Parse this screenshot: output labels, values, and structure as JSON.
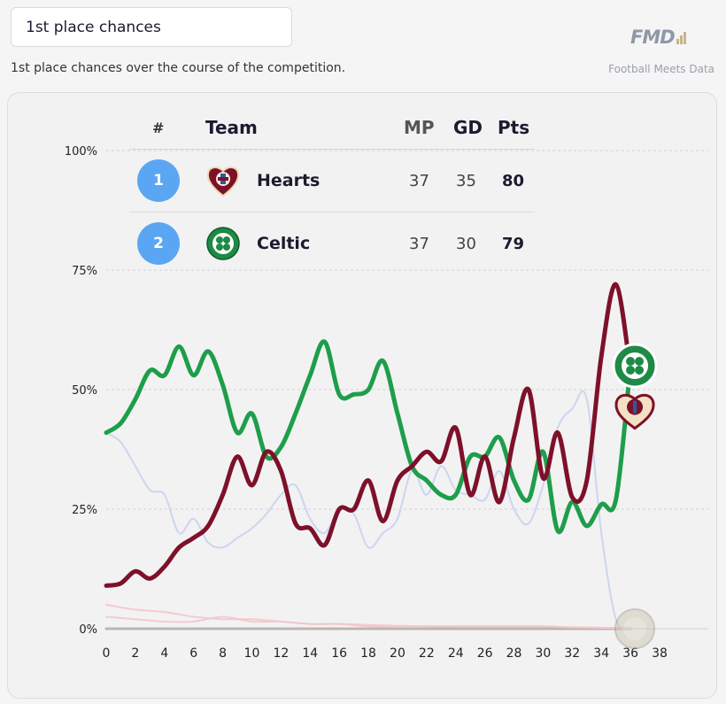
{
  "header": {
    "title": "1st place chances",
    "subtitle": "1st place chances over the course of the competition.",
    "brand": "FMD",
    "tagline": "Football Meets Data"
  },
  "standings": {
    "columns": {
      "rank": "#",
      "team": "Team",
      "mp": "MP",
      "gd": "GD",
      "pts": "Pts"
    },
    "rows": [
      {
        "rank": "1",
        "team": "Hearts",
        "mp": "37",
        "gd": "35",
        "pts": "80",
        "color": "#7d1129"
      },
      {
        "rank": "2",
        "team": "Celtic",
        "mp": "37",
        "gd": "30",
        "pts": "79",
        "color": "#1e9e4a"
      }
    ]
  },
  "chart_data": {
    "type": "line",
    "xlim": [
      0,
      38
    ],
    "ylim": [
      0,
      100
    ],
    "x_ticks": [
      "0",
      "2",
      "4",
      "6",
      "8",
      "10",
      "12",
      "14",
      "16",
      "18",
      "20",
      "22",
      "24",
      "26",
      "28",
      "30",
      "32",
      "34",
      "36",
      "38"
    ],
    "y_ticks": [
      "0%",
      "25%",
      "50%",
      "75%",
      "100%"
    ],
    "grid": true,
    "series": [
      {
        "name": "Hearts",
        "color": "#7d1129",
        "x": [
          0,
          1,
          2,
          3,
          4,
          5,
          6,
          7,
          8,
          9,
          10,
          11,
          12,
          13,
          14,
          15,
          16,
          17,
          18,
          19,
          20,
          21,
          22,
          23,
          24,
          25,
          26,
          27,
          28,
          29,
          30,
          31,
          32,
          33,
          34,
          35,
          36
        ],
        "values": [
          9,
          9.5,
          12,
          10.5,
          13,
          17,
          19,
          21.5,
          28,
          36,
          30,
          37,
          33,
          22,
          21,
          17.5,
          25,
          25,
          31,
          22.5,
          31,
          34,
          37,
          35,
          42,
          28,
          36,
          26.5,
          40,
          50,
          31.5,
          41,
          27.5,
          31,
          57,
          72,
          54
        ]
      },
      {
        "name": "Celtic",
        "color": "#1e9e4a",
        "x": [
          0,
          1,
          2,
          3,
          4,
          5,
          6,
          7,
          8,
          9,
          10,
          11,
          12,
          13,
          14,
          15,
          16,
          17,
          18,
          19,
          20,
          21,
          22,
          23,
          24,
          25,
          26,
          27,
          28,
          29,
          30,
          31,
          32,
          33,
          34,
          35,
          36
        ],
        "values": [
          41,
          43,
          48,
          54,
          53,
          59,
          53,
          58,
          51,
          41,
          45,
          36,
          38,
          45,
          53,
          60,
          49,
          49,
          50,
          56,
          45,
          34,
          31,
          28,
          28,
          36,
          36,
          40,
          31,
          27,
          37,
          20.5,
          26.5,
          21.5,
          26,
          27,
          55
        ]
      },
      {
        "name": "",
        "color": "#c9d2ee",
        "x": [
          0,
          1,
          2,
          3,
          4,
          5,
          6,
          7,
          8,
          9,
          10,
          11,
          12,
          13,
          14,
          15,
          16,
          17,
          18,
          19,
          20,
          21,
          22,
          23,
          24,
          25,
          26,
          27,
          28,
          29,
          30,
          31,
          32,
          33,
          34,
          35,
          36
        ],
        "values": [
          41,
          39,
          34,
          29,
          28,
          20,
          23,
          18,
          17,
          19,
          21,
          24,
          28,
          30,
          23,
          20,
          25,
          24,
          17,
          20,
          23,
          33,
          28,
          34,
          29,
          28,
          27,
          33,
          25,
          22,
          30,
          42,
          46,
          48,
          20,
          2,
          0
        ]
      },
      {
        "name": "",
        "color": "#f2c6cc",
        "x": [
          0,
          2,
          4,
          6,
          8,
          10,
          12,
          14,
          16,
          18,
          20,
          22,
          24,
          26,
          28,
          30,
          32,
          34,
          36
        ],
        "values": [
          5,
          4,
          3.5,
          2.5,
          2,
          2,
          1.5,
          1,
          1,
          0.5,
          0.5,
          0.5,
          0.5,
          0.5,
          0.5,
          0.5,
          0.3,
          0.2,
          0.1
        ]
      },
      {
        "name": "",
        "color": "#f2c6cc",
        "x": [
          0,
          2,
          4,
          6,
          8,
          10,
          12,
          14,
          16,
          18,
          20,
          22,
          24,
          26,
          28,
          30,
          32,
          34,
          36
        ],
        "values": [
          2.5,
          2,
          1.5,
          1.5,
          2.5,
          1.5,
          1.5,
          1,
          1,
          0.8,
          0.6,
          0.5,
          0.5,
          0.5,
          0.5,
          0.5,
          0.3,
          0.2,
          0.1
        ]
      },
      {
        "name": "",
        "color": "#b8b0a8",
        "x": [
          0,
          36
        ],
        "values": [
          0,
          0
        ]
      }
    ]
  }
}
